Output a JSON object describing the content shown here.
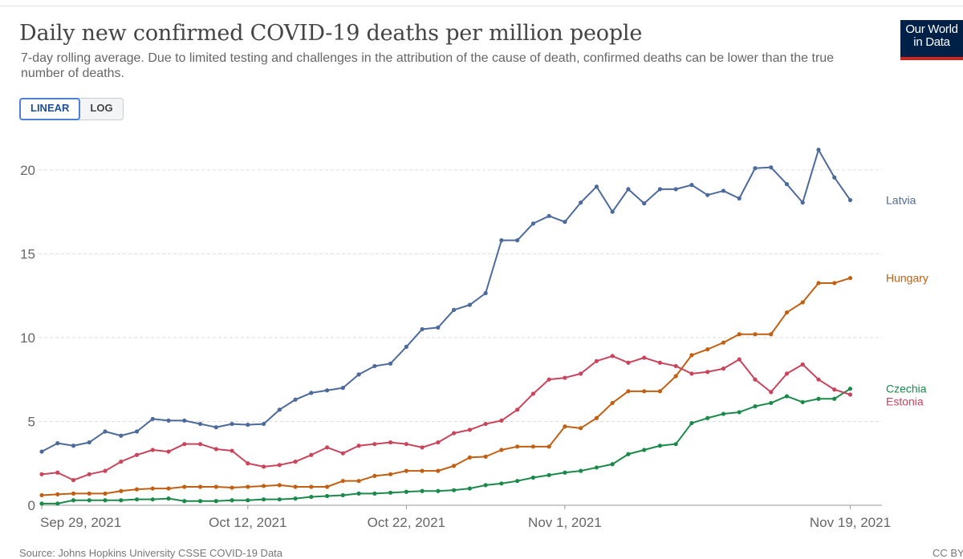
{
  "title": "Daily new confirmed COVID-19 deaths per million people",
  "subtitle": "7-day rolling average. Due to limited testing and challenges in the attribution of the cause of death, confirmed deaths can be lower than the true number of deaths.",
  "logo": {
    "line1": "Our World",
    "line2": "in Data"
  },
  "scale_toggle": {
    "linear_label": "LINEAR",
    "log_label": "LOG",
    "selected": "LINEAR"
  },
  "source": "Source: Johns Hopkins University CSSE COVID-19 Data",
  "license": "CC BY",
  "chart_data": {
    "type": "line",
    "title": "Daily new confirmed COVID-19 deaths per million people",
    "ylim": [
      0,
      22
    ],
    "y_ticks": [
      0,
      5,
      10,
      15,
      20
    ],
    "x_range": [
      "2021-09-29",
      "2021-11-21"
    ],
    "x_tick_labels": [
      {
        "date": "2021-09-29",
        "label": "Sep 29, 2021"
      },
      {
        "date": "2021-10-12",
        "label": "Oct 12, 2021"
      },
      {
        "date": "2021-10-22",
        "label": "Oct 22, 2021"
      },
      {
        "date": "2021-11-01",
        "label": "Nov 1, 2021"
      },
      {
        "date": "2021-11-19",
        "label": "Nov 19, 2021"
      }
    ],
    "grid": "horizontal",
    "legend": "right (end-of-line labels)",
    "series": [
      {
        "name": "Latvia",
        "color": "#4c6a9c",
        "values": [
          3.2,
          3.7,
          3.55,
          3.75,
          4.4,
          4.15,
          4.4,
          5.15,
          5.05,
          5.05,
          4.85,
          4.65,
          4.85,
          4.8,
          4.85,
          5.7,
          6.3,
          6.7,
          6.85,
          7.0,
          7.8,
          8.3,
          8.45,
          9.45,
          10.5,
          10.6,
          11.65,
          11.95,
          12.65,
          15.8,
          15.8,
          16.8,
          17.25,
          16.9,
          18.05,
          19.0,
          17.5,
          18.85,
          18.0,
          18.85,
          18.85,
          19.1,
          18.5,
          18.75,
          18.3,
          20.1,
          20.15,
          19.15,
          18.05,
          21.2,
          19.55,
          18.2
        ]
      },
      {
        "name": "Hungary",
        "color": "#c15f12",
        "values": [
          0.6,
          0.65,
          0.7,
          0.7,
          0.7,
          0.85,
          0.95,
          1.0,
          1.0,
          1.1,
          1.1,
          1.1,
          1.05,
          1.1,
          1.15,
          1.2,
          1.1,
          1.1,
          1.1,
          1.45,
          1.45,
          1.75,
          1.85,
          2.05,
          2.05,
          2.05,
          2.35,
          2.85,
          2.9,
          3.3,
          3.5,
          3.5,
          3.5,
          4.7,
          4.6,
          5.2,
          6.1,
          6.8,
          6.8,
          6.8,
          7.7,
          8.95,
          9.3,
          9.7,
          10.2,
          10.2,
          10.2,
          11.5,
          12.1,
          13.25,
          13.25,
          13.55
        ]
      },
      {
        "name": "Czechia",
        "color": "#1a8a4a",
        "values": [
          0.1,
          0.1,
          0.3,
          0.3,
          0.3,
          0.3,
          0.35,
          0.35,
          0.4,
          0.25,
          0.25,
          0.25,
          0.3,
          0.3,
          0.35,
          0.35,
          0.4,
          0.5,
          0.55,
          0.6,
          0.7,
          0.7,
          0.75,
          0.8,
          0.85,
          0.85,
          0.9,
          1.0,
          1.2,
          1.3,
          1.45,
          1.65,
          1.8,
          1.95,
          2.05,
          2.25,
          2.45,
          3.05,
          3.3,
          3.55,
          3.65,
          4.9,
          5.2,
          5.45,
          5.55,
          5.9,
          6.1,
          6.5,
          6.15,
          6.35,
          6.35,
          6.95
        ]
      },
      {
        "name": "Estonia",
        "color": "#c8455c",
        "values": [
          1.85,
          1.95,
          1.5,
          1.85,
          2.05,
          2.6,
          3.0,
          3.3,
          3.2,
          3.65,
          3.65,
          3.35,
          3.25,
          2.5,
          2.3,
          2.4,
          2.6,
          3.0,
          3.45,
          3.1,
          3.55,
          3.65,
          3.75,
          3.65,
          3.45,
          3.75,
          4.3,
          4.5,
          4.85,
          5.05,
          5.7,
          6.65,
          7.5,
          7.6,
          7.85,
          8.6,
          8.9,
          8.5,
          8.8,
          8.5,
          8.3,
          7.85,
          7.95,
          8.15,
          8.7,
          7.5,
          6.75,
          7.85,
          8.4,
          7.5,
          6.9,
          6.6
        ]
      }
    ]
  }
}
